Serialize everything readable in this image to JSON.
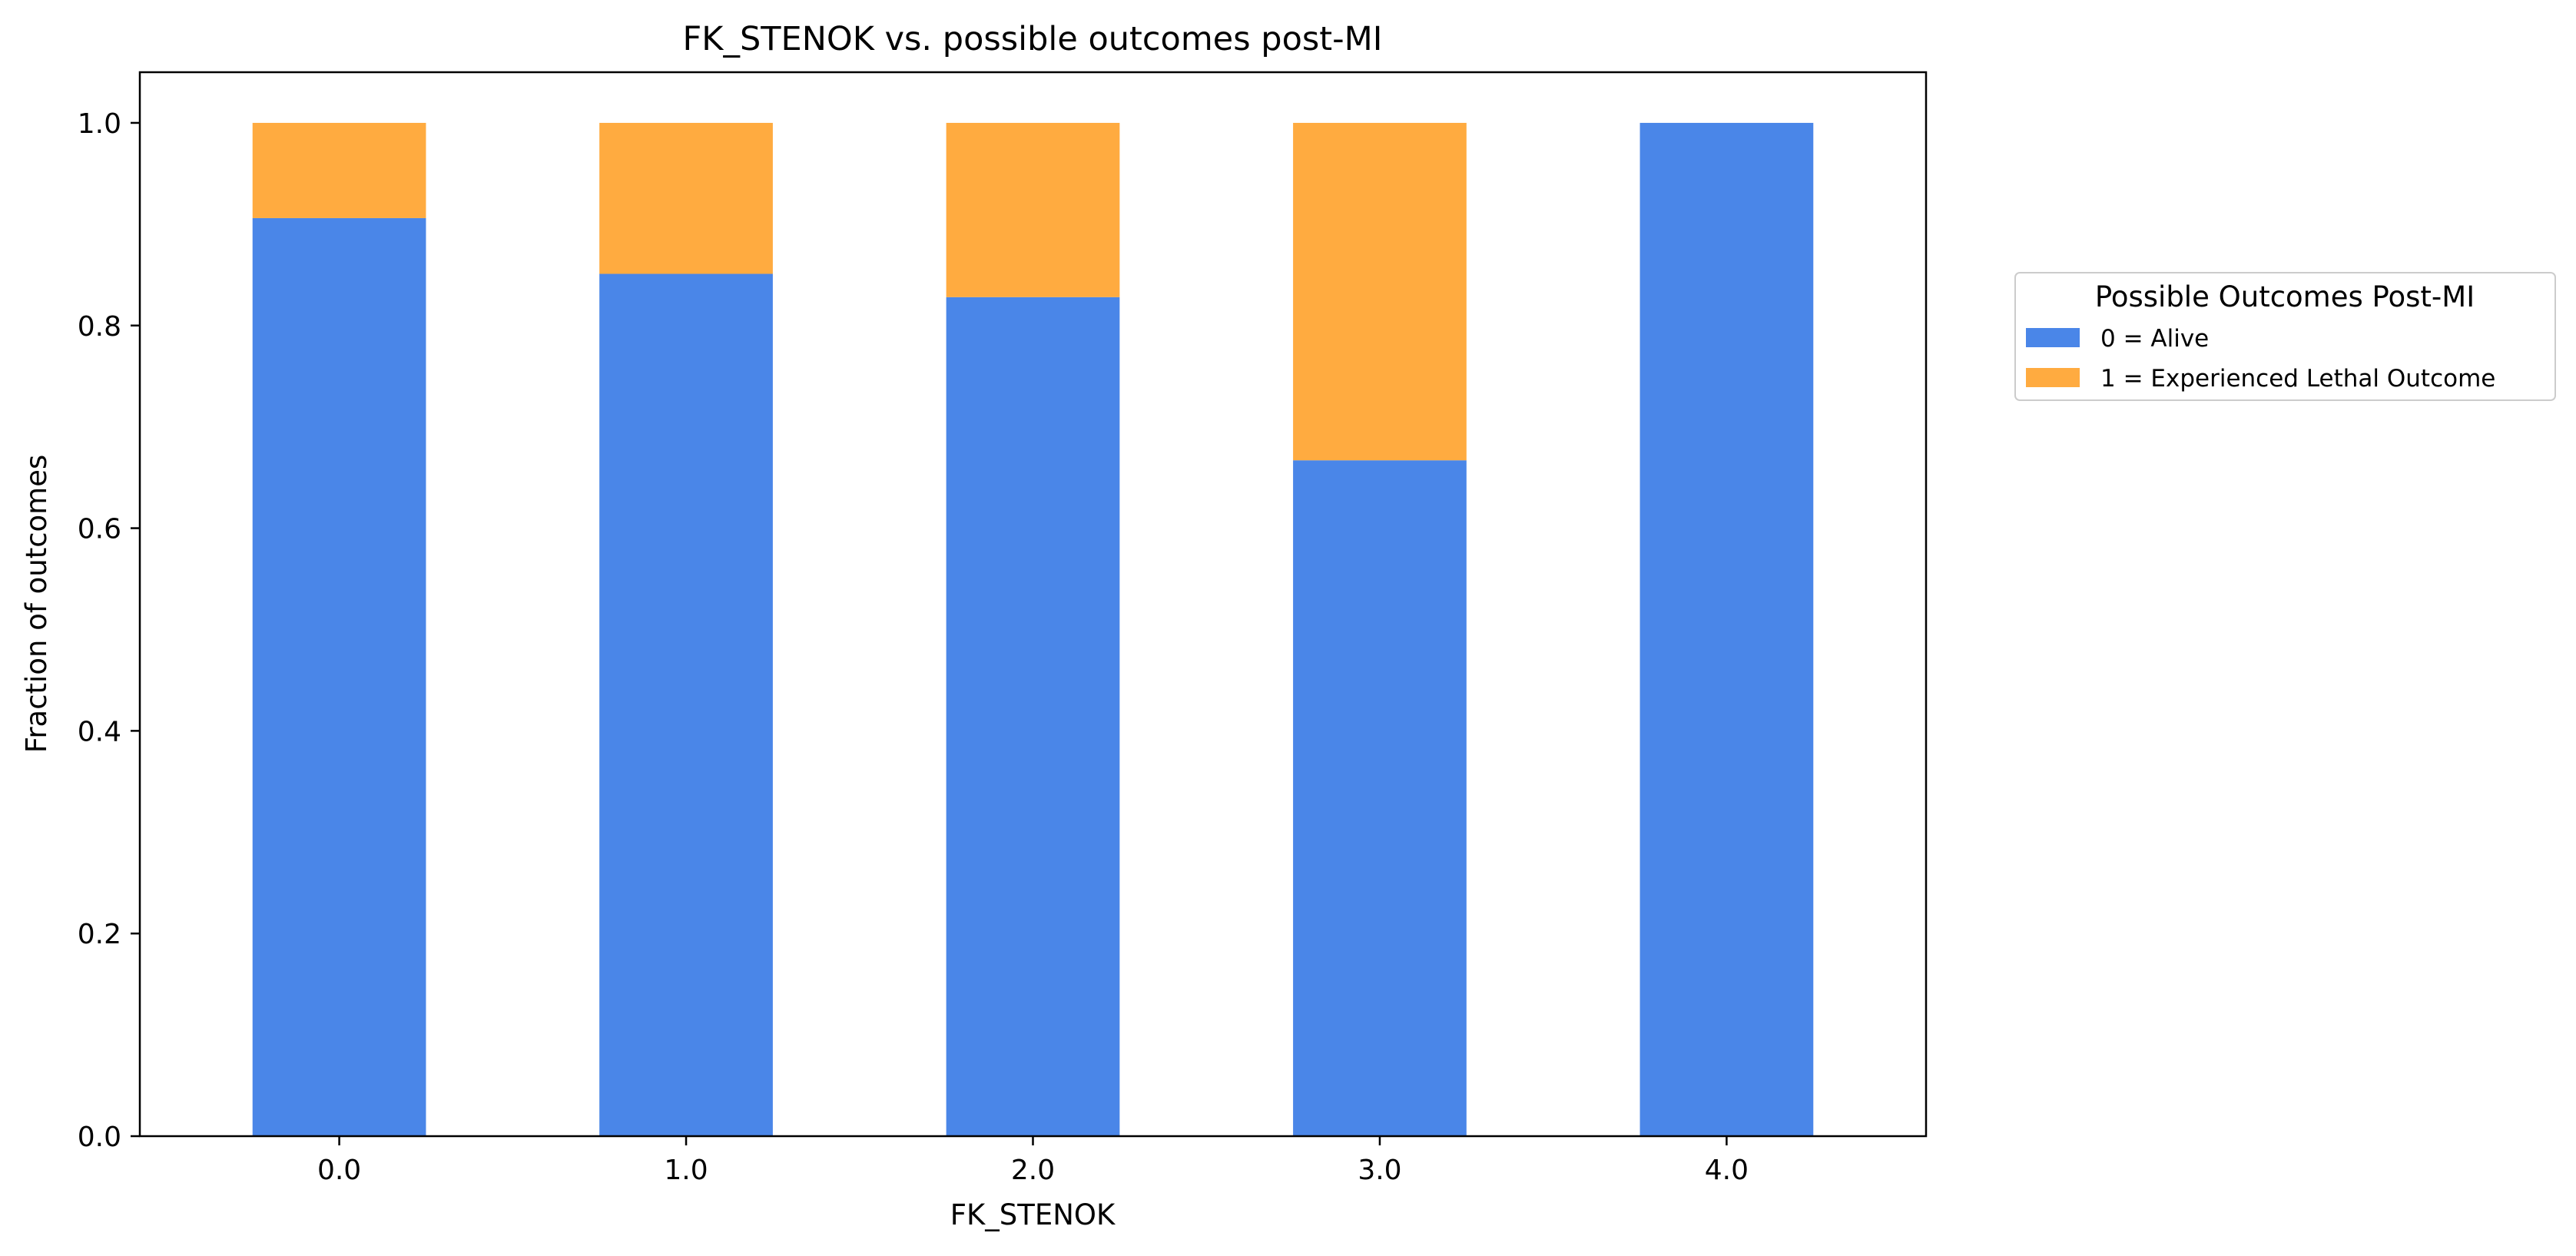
{
  "chart_data": {
    "type": "bar",
    "stacked": true,
    "title": "FK_STENOK vs. possible outcomes post-MI",
    "xlabel": "FK_STENOK",
    "ylabel": "Fraction of outcomes",
    "categories": [
      "0.0",
      "1.0",
      "2.0",
      "3.0",
      "4.0"
    ],
    "series": [
      {
        "name": "0 = Alive",
        "color": "#4a86e8",
        "values": [
          0.906,
          0.851,
          0.828,
          0.667,
          1.0
        ]
      },
      {
        "name": "1 = Experienced Lethal Outcome",
        "color": "#ffab40",
        "values": [
          0.094,
          0.149,
          0.172,
          0.333,
          0.0
        ]
      }
    ],
    "ylim": [
      0,
      1.05
    ],
    "yticks": [
      "0.0",
      "0.2",
      "0.4",
      "0.6",
      "0.8",
      "1.0"
    ],
    "legend": {
      "title": "Possible Outcomes Post-MI",
      "placement": "outside-right"
    },
    "grid": false
  }
}
